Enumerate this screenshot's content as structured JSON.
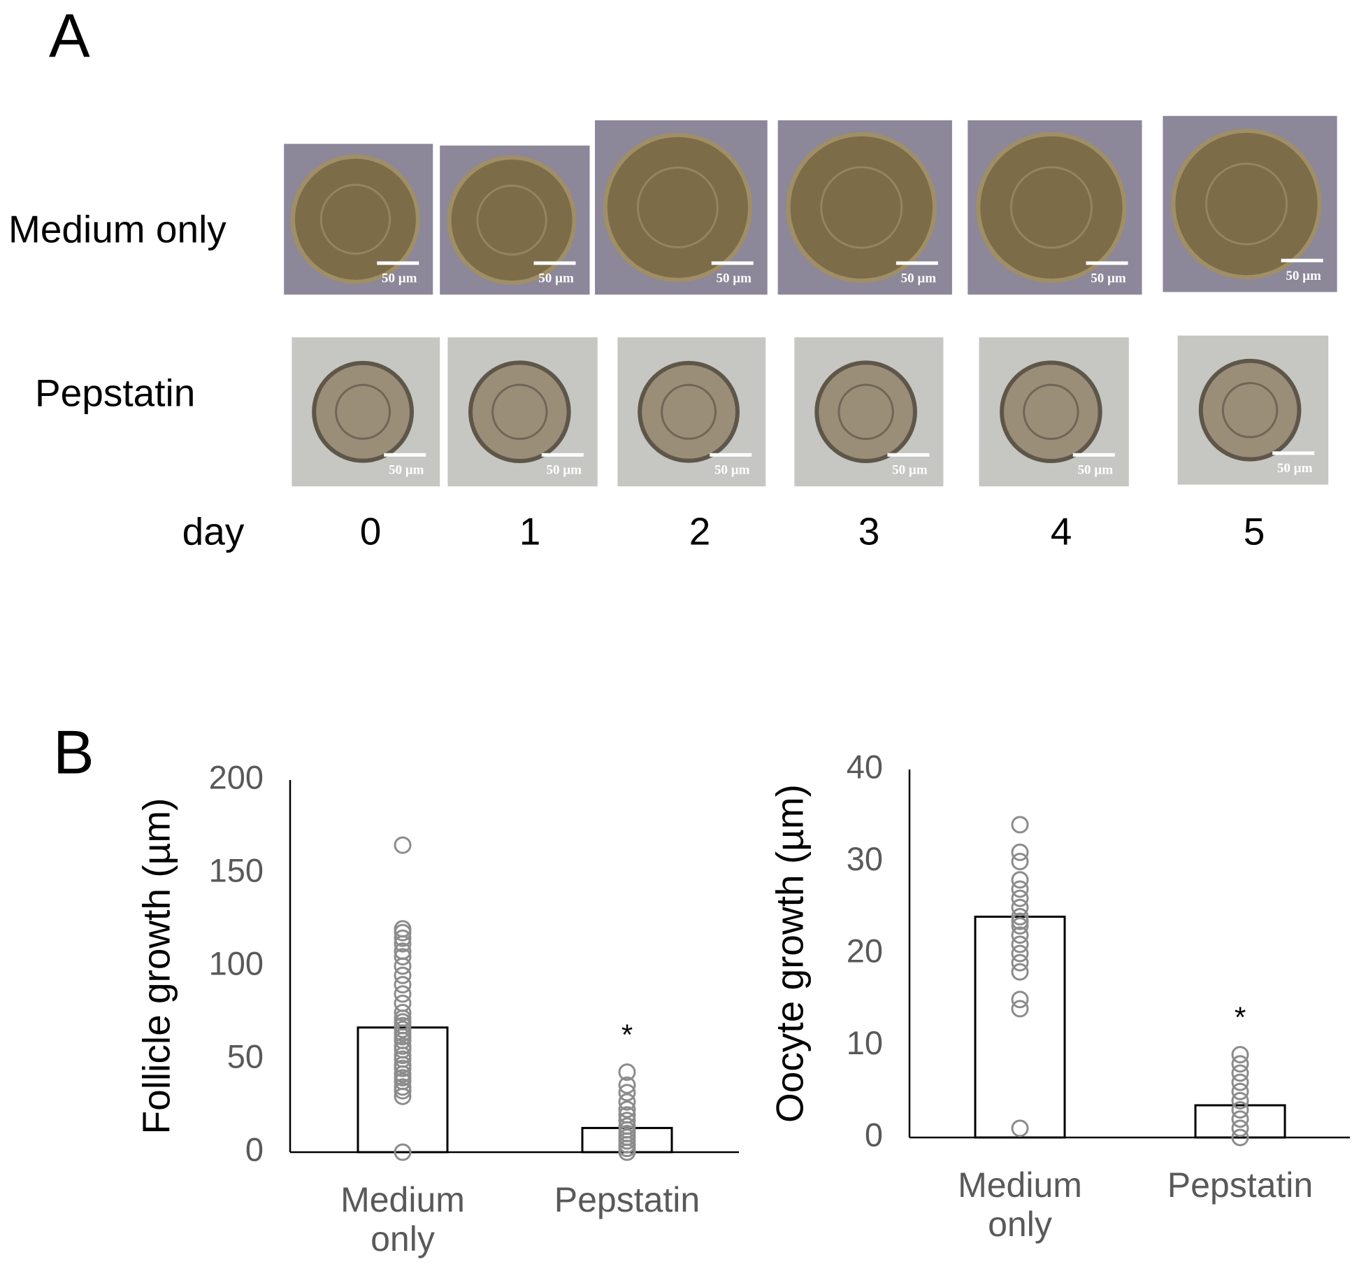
{
  "panel_a": {
    "label": "A",
    "rows": [
      "Medium only",
      "Pepstatin"
    ],
    "day_label": "day",
    "days": [
      "0",
      "1",
      "2",
      "3",
      "4",
      "5"
    ],
    "scale_bar": "50 µm"
  },
  "panel_b_label": "B",
  "chart_data": [
    {
      "type": "bar",
      "ylabel": "Follicle growth (µm)",
      "categories": [
        "Medium only",
        "Pepstatin"
      ],
      "values": [
        67,
        13
      ],
      "points": [
        [
          0,
          30,
          33,
          35,
          38,
          40,
          42,
          45,
          47,
          50,
          52,
          55,
          57,
          60,
          62,
          64,
          66,
          68,
          70,
          72,
          75,
          80,
          85,
          90,
          95,
          100,
          105,
          108,
          112,
          115,
          118,
          120,
          165
        ],
        [
          0,
          2,
          4,
          6,
          8,
          10,
          12,
          14,
          17,
          20,
          23,
          27,
          32,
          36,
          43
        ]
      ],
      "annotation": "*",
      "ylim": [
        0,
        200
      ],
      "yticks": [
        0,
        50,
        100,
        150,
        200
      ],
      "bar_color": "#ffffff",
      "edge_color": "#000000",
      "point_color": "#8c8c8c"
    },
    {
      "type": "bar",
      "ylabel": "Oocyte growth (µm)",
      "categories": [
        "Medium only",
        "Pepstatin"
      ],
      "values": [
        24,
        3.5
      ],
      "points": [
        [
          1,
          14,
          15,
          18,
          19,
          20,
          21,
          22,
          23,
          23.5,
          24,
          25,
          26,
          27,
          28,
          30,
          31,
          34
        ],
        [
          0,
          1,
          2,
          3,
          4,
          5,
          6,
          7,
          8,
          9
        ]
      ],
      "annotation": "*",
      "ylim": [
        0,
        40
      ],
      "yticks": [
        0,
        10,
        20,
        30,
        40
      ],
      "bar_color": "#ffffff",
      "edge_color": "#000000",
      "point_color": "#8c8c8c"
    }
  ]
}
